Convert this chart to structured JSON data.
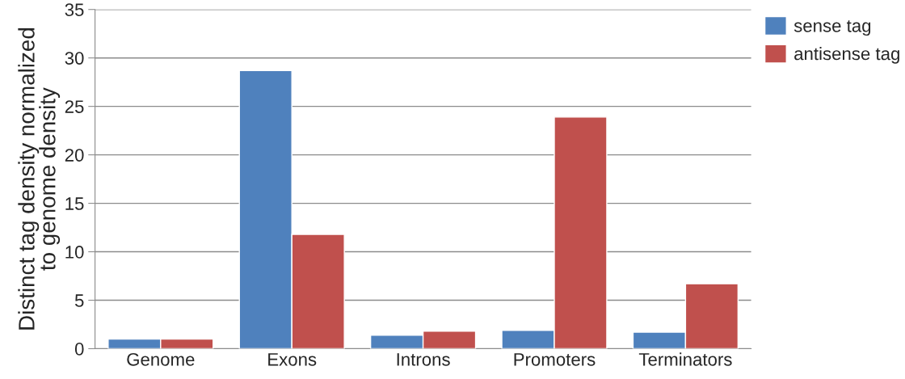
{
  "chart_data": {
    "type": "bar",
    "ylabel": "Distinct tag density normalized\nto genome density",
    "categories": [
      "Genome",
      "Exons",
      "Introns",
      "Promoters",
      "Terminators"
    ],
    "series": [
      {
        "name": "sense tag",
        "color": "#4f81bd",
        "values": [
          1.0,
          28.7,
          1.4,
          1.9,
          1.7
        ]
      },
      {
        "name": "antisense tag",
        "color": "#c0504d",
        "values": [
          1.0,
          11.8,
          1.8,
          23.9,
          6.7
        ]
      }
    ],
    "ylim": [
      0,
      35
    ],
    "yticks": [
      0,
      5,
      10,
      15,
      20,
      25,
      30,
      35
    ],
    "grid": "y",
    "legend": "top right"
  }
}
